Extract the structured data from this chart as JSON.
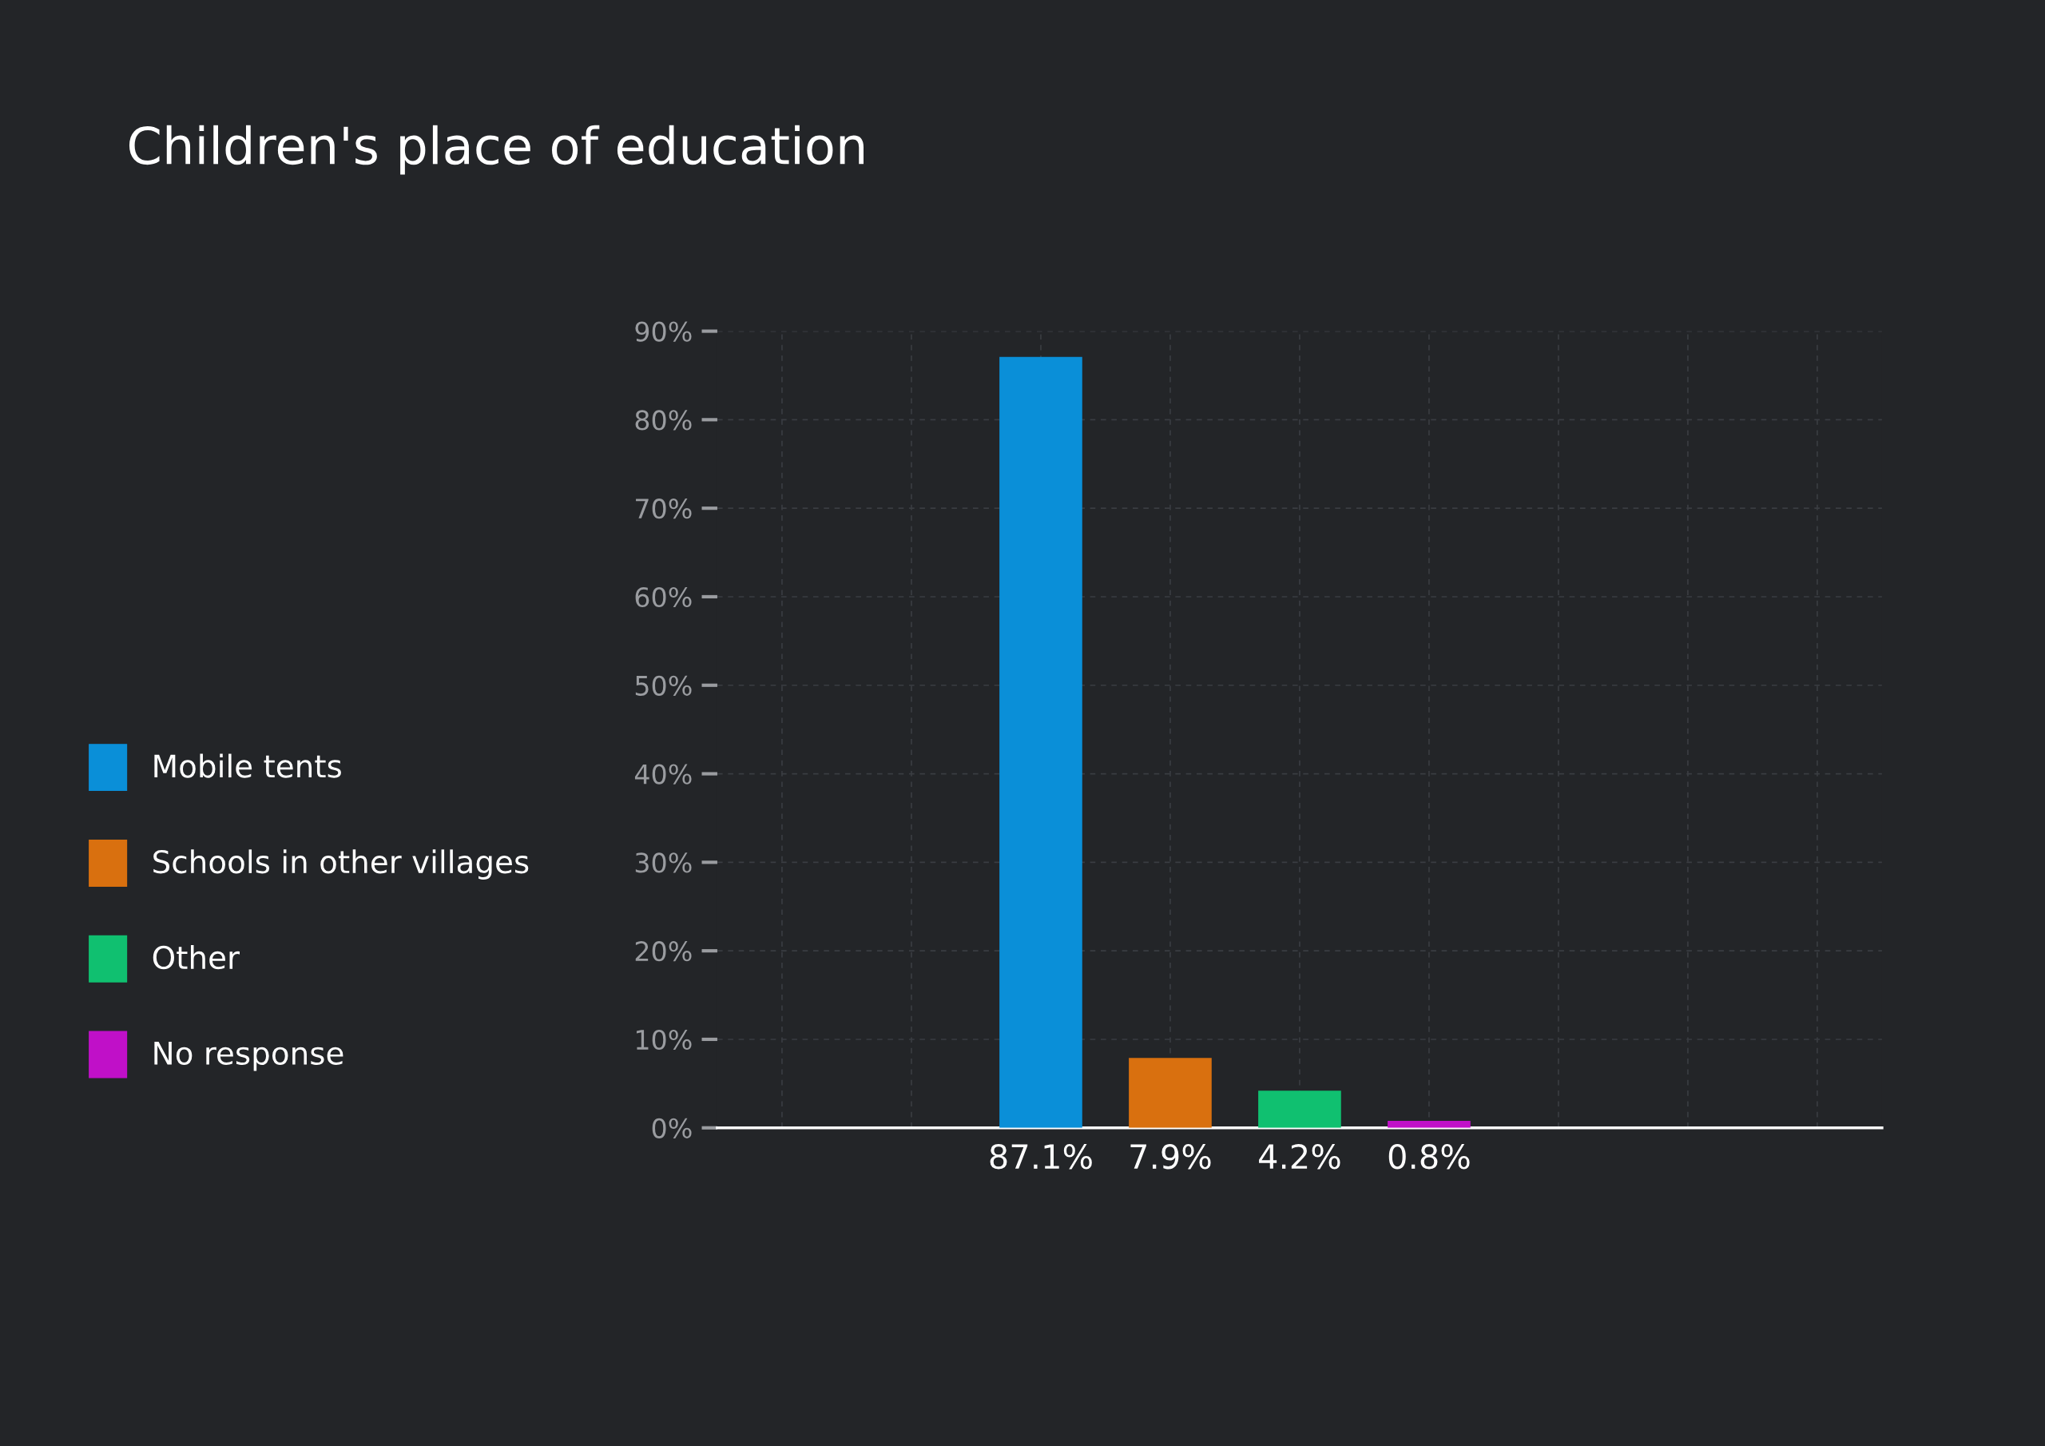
{
  "chart_data": {
    "type": "bar",
    "title": "Children's place of education",
    "categories": [
      null,
      null,
      null,
      null,
      null,
      null,
      null,
      null,
      null
    ],
    "series": [
      {
        "name": "Mobile tents",
        "color": "#0a8fd8",
        "values": [
          null,
          null,
          87.1,
          null,
          null,
          null,
          null,
          null,
          null
        ]
      },
      {
        "name": "Schools in other villages",
        "color": "#d9700f",
        "values": [
          null,
          null,
          null,
          7.9,
          null,
          null,
          null,
          null,
          null
        ]
      },
      {
        "name": "Other",
        "color": "#10c070",
        "values": [
          null,
          null,
          null,
          null,
          4.2,
          null,
          null,
          null,
          null
        ]
      },
      {
        "name": "No response",
        "color": "#c010c8",
        "values": [
          null,
          null,
          null,
          null,
          null,
          0.8,
          null,
          null,
          null
        ]
      }
    ],
    "value_labels": [
      null,
      null,
      "87.1%",
      "7.9%",
      "4.2%",
      "0.8%",
      null,
      null,
      null
    ],
    "ylim": [
      0,
      90
    ],
    "yticks": [
      {
        "value": 0,
        "label": "0%"
      },
      {
        "value": 10,
        "label": "10%"
      },
      {
        "value": 20,
        "label": "20%"
      },
      {
        "value": 30,
        "label": "30%"
      },
      {
        "value": 40,
        "label": "40%"
      },
      {
        "value": 50,
        "label": "50%"
      },
      {
        "value": 60,
        "label": "60%"
      },
      {
        "value": 70,
        "label": "70%"
      },
      {
        "value": 80,
        "label": "80%"
      },
      {
        "value": 90,
        "label": "90%"
      }
    ],
    "grid": true,
    "legend": "left",
    "stacked": true
  }
}
